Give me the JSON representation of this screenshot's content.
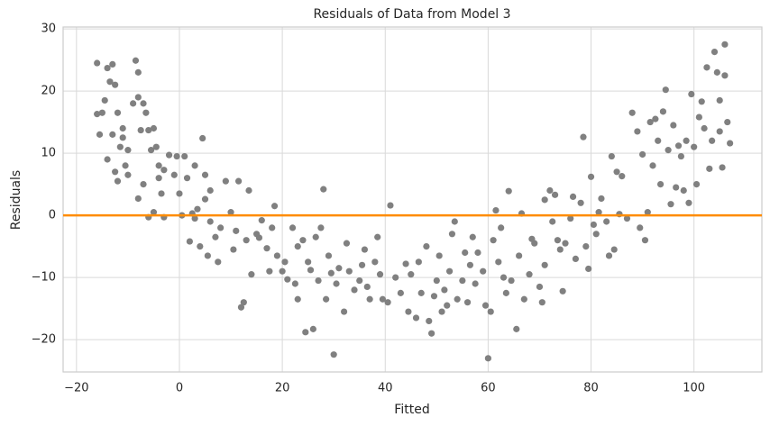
{
  "chart_data": {
    "type": "scatter",
    "title": "Residuals of Data from Model 3",
    "xlabel": "Fitted",
    "ylabel": "Residuals",
    "color": "#808080",
    "xlim": [
      -22.6,
      113.2
    ],
    "ylim": [
      -25.2,
      30.3
    ],
    "xticks": [
      {
        "value": -20,
        "label": "−20"
      },
      0,
      20,
      40,
      60,
      80,
      100
    ],
    "yticks": [
      {
        "value": -20,
        "label": "−20"
      },
      {
        "value": -10,
        "label": "−10"
      },
      0,
      10,
      20,
      30
    ],
    "grid": true,
    "hline": {
      "value": 0,
      "color": "#ff8c00"
    },
    "x": [
      -16,
      -16,
      -15.5,
      -15,
      -14.5,
      -14,
      -14,
      -13.5,
      -13,
      -13,
      -12.5,
      -12.5,
      -12,
      -12,
      -11.5,
      -11,
      -11,
      -10.5,
      -10,
      -10,
      -9,
      -8.5,
      -8,
      -8,
      -8,
      -7.5,
      -7,
      -7,
      -6.5,
      -6,
      -6,
      -5.5,
      -5,
      -5,
      -4.5,
      -4,
      -4,
      -3.5,
      -3,
      -3,
      -2,
      -1,
      -0.5,
      0,
      0.5,
      1,
      1.5,
      2,
      2.5,
      3,
      3,
      3.5,
      4,
      4.5,
      5,
      5,
      5.5,
      6,
      6,
      7,
      7.5,
      8,
      9,
      10,
      10.5,
      11,
      11.5,
      12,
      12.5,
      13,
      13.5,
      14,
      15,
      15.5,
      16,
      17,
      17.5,
      18,
      18.5,
      19,
      20,
      20.5,
      21,
      22,
      22.5,
      23,
      23,
      24,
      24.5,
      25,
      25.5,
      26,
      26.5,
      27,
      27.5,
      28,
      28.5,
      29,
      29.5,
      30,
      30.5,
      31,
      32,
      32.5,
      33,
      34,
      35,
      35.5,
      36,
      36.5,
      37,
      38,
      38.5,
      39,
      39.5,
      40.5,
      41,
      42,
      43,
      44,
      44.5,
      45,
      46,
      46.5,
      47,
      48,
      48.5,
      49,
      49.5,
      50,
      50.5,
      51,
      51.5,
      52,
      52.5,
      53,
      53.5,
      54,
      55,
      55.5,
      56,
      56.5,
      57,
      57.5,
      58,
      59,
      59.5,
      60,
      60.5,
      61,
      61.5,
      62,
      62.5,
      63,
      63.5,
      64,
      64.5,
      65.5,
      66,
      66.5,
      67,
      68,
      68.5,
      69,
      70,
      70.5,
      71,
      71,
      72,
      72.5,
      73,
      73.5,
      74,
      74.5,
      75,
      76,
      76.5,
      77,
      78,
      78.5,
      79,
      79.5,
      80,
      80.5,
      81,
      81.5,
      82,
      83,
      83.5,
      84,
      84.5,
      85,
      85.5,
      86,
      87,
      88,
      89,
      89.5,
      90,
      90.5,
      91,
      91.5,
      92,
      92.5,
      93,
      93.5,
      94,
      94.5,
      95,
      95.5,
      96,
      96.5,
      97,
      97.5,
      98,
      98.5,
      99,
      99.5,
      100,
      100.5,
      101,
      101.5,
      102,
      102.5,
      103,
      103.5,
      104,
      104.5,
      105,
      105,
      105.5,
      106,
      106,
      106.5,
      107
    ],
    "values": [
      24.5,
      16.3,
      13,
      16.5,
      18.5,
      9,
      23.7,
      21.5,
      13,
      24.3,
      21,
      7,
      16.5,
      5.5,
      11,
      12.5,
      14,
      8,
      10.5,
      6.5,
      18,
      24.9,
      23,
      19,
      2.7,
      13.7,
      18,
      5,
      16.5,
      -0.3,
      13.7,
      10.5,
      14,
      0.5,
      11,
      6,
      8,
      3.5,
      -0.3,
      7.3,
      9.7,
      6.5,
      9.5,
      3.5,
      0,
      9.5,
      6,
      -4.2,
      0.3,
      -0.5,
      8,
      1,
      -5,
      12.4,
      2.6,
      6.5,
      -6.5,
      4,
      -1,
      -3.5,
      -7.5,
      -2,
      5.5,
      0.5,
      -5.5,
      -2.5,
      5.5,
      -14.8,
      -14,
      -4,
      4,
      -9.5,
      -3,
      -3.6,
      -0.8,
      -5.3,
      -9,
      -2,
      1.5,
      -6.5,
      -9,
      -7.5,
      -10.3,
      -2,
      -11,
      -5,
      -13.5,
      -4,
      -18.8,
      -7.5,
      -8.8,
      -18.3,
      -3.5,
      -10.5,
      -2,
      4.2,
      -13.5,
      -6.5,
      -9.3,
      -22.4,
      -11,
      -8.5,
      -15.5,
      -4.5,
      -9,
      -12,
      -10.5,
      -8,
      -5.5,
      -11.5,
      -13.5,
      -7.5,
      -3.5,
      -9.5,
      -13.5,
      -14,
      1.6,
      -10,
      -12.5,
      -7.8,
      -15.5,
      -9.5,
      -16.5,
      -7.5,
      -12.5,
      -5,
      -17,
      -19,
      -13,
      -10.5,
      -6.5,
      -15.5,
      -12,
      -14.5,
      -9,
      -3,
      -1,
      -13.5,
      -10.5,
      -6,
      -14,
      -8,
      -3.5,
      -11,
      -6,
      -9,
      -14.5,
      -23,
      -15.5,
      -4,
      0.8,
      -7.5,
      -2,
      -10,
      -12.5,
      3.9,
      -10.5,
      -18.3,
      -6.5,
      0.3,
      -13.5,
      -9.5,
      -3.8,
      -4.5,
      -11.5,
      -14,
      2.5,
      -8,
      4,
      -1,
      3.3,
      -4,
      -5.5,
      -12.2,
      -4.5,
      -0.5,
      3,
      -7,
      2,
      12.6,
      -5,
      -8.6,
      6.2,
      -1.5,
      -3,
      0.5,
      2.7,
      -1,
      -6.5,
      9.5,
      -5.5,
      7,
      0.2,
      6.3,
      -0.5,
      16.5,
      13.5,
      -2,
      9.8,
      -4,
      0.5,
      15,
      8,
      15.5,
      12,
      5,
      16.7,
      20.2,
      10.5,
      1.8,
      14.5,
      4.5,
      11.2,
      9.5,
      4,
      12,
      2,
      19.5,
      11,
      5,
      15.8,
      18.3,
      14,
      23.8,
      7.5,
      12,
      26.3,
      23,
      18.5,
      13.5,
      7.7,
      22.5,
      27.5,
      15,
      11.6
    ]
  }
}
